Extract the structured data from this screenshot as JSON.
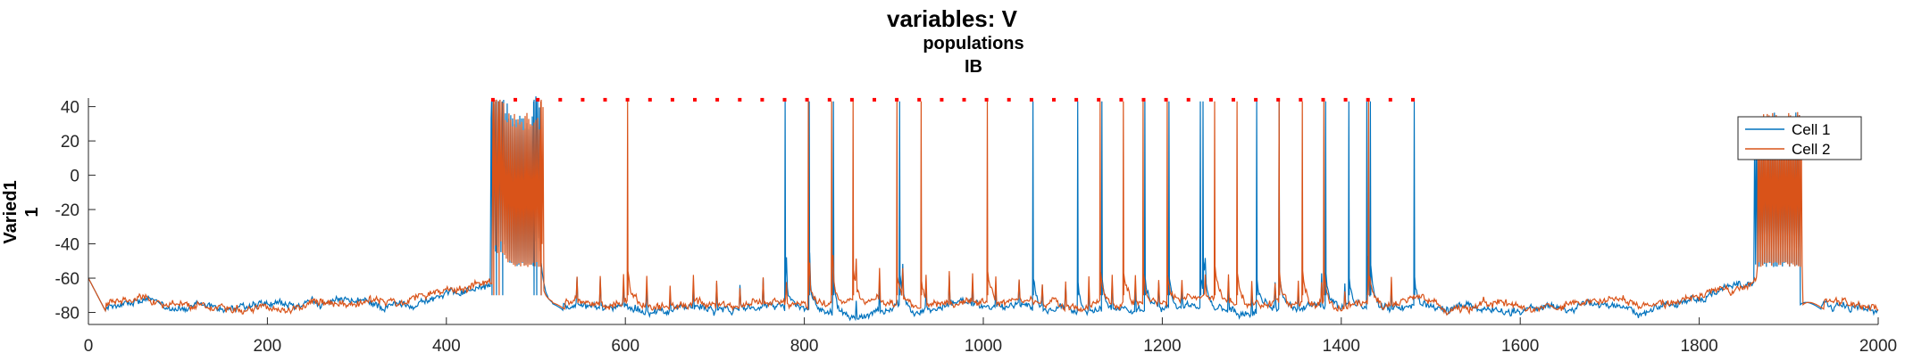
{
  "chart_data": {
    "type": "line",
    "title_lines": [
      "variables: V",
      "populations",
      "IB"
    ],
    "ylabel_lines": [
      "Varied1",
      "1"
    ],
    "xlabel": "",
    "xlim": [
      0,
      2000
    ],
    "ylim": [
      -87,
      45
    ],
    "x_ticks": [
      0,
      200,
      400,
      600,
      800,
      1000,
      1200,
      1400,
      1600,
      1800,
      2000
    ],
    "y_ticks": [
      40,
      20,
      0,
      -20,
      -40,
      -60,
      -80
    ],
    "grid": false,
    "legend_position": "top-right",
    "colors": {
      "cell1": "#0072BD",
      "cell2": "#D95319",
      "marker": "#FF0000",
      "axis": "#262626"
    },
    "series": [
      {
        "name": "Cell 1",
        "color": "#0072BD",
        "baseline": -78,
        "burst_windows": [
          [
            450,
            505
          ],
          [
            1862,
            1912
          ]
        ],
        "spike_times": [
          450,
          455,
          462,
          497,
          500,
          505,
          778,
          805,
          832,
          906,
          1055,
          1105,
          1132,
          1180,
          1207,
          1242,
          1245,
          1305,
          1330,
          1382,
          1408,
          1428,
          1432,
          1481
        ]
      },
      {
        "name": "Cell 2",
        "color": "#D95319",
        "baseline": -76,
        "burst_windows": [
          [
            452,
            508
          ],
          [
            1865,
            1915
          ]
        ],
        "spike_times": [
          452,
          458,
          505,
          602,
          804,
          830,
          854,
          903,
          930,
          1004,
          1130,
          1156,
          1178,
          1205,
          1258,
          1283,
          1330,
          1356,
          1380,
          1430
        ]
      }
    ],
    "raster_markers": {
      "y": 44,
      "x_start": 452,
      "x_end": 1480,
      "count": 42
    }
  }
}
